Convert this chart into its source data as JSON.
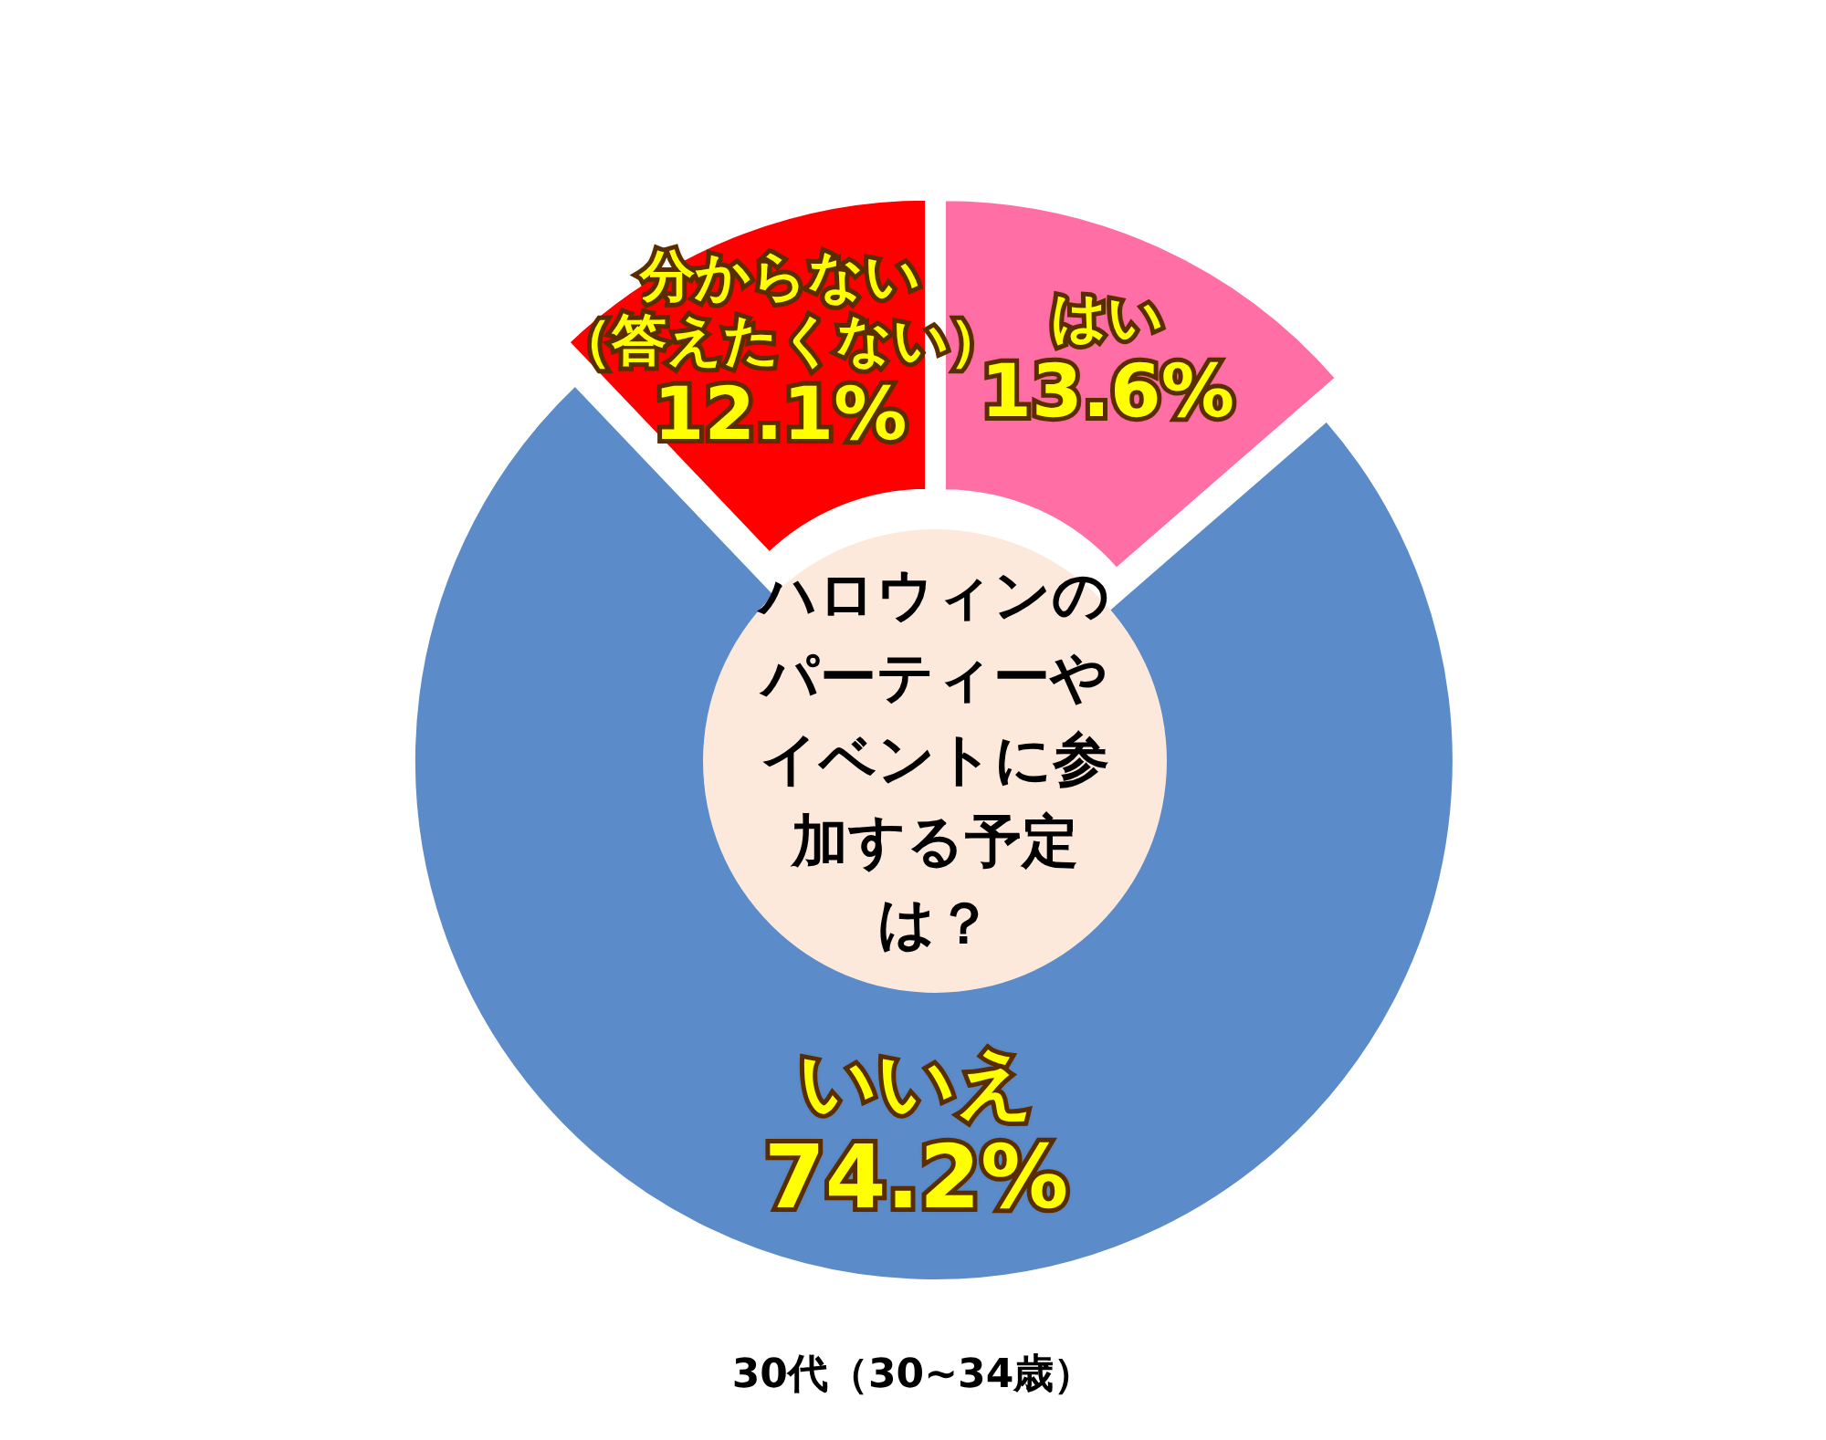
{
  "chart_data": {
    "type": "donut",
    "title": "ハロウィンのパーティーやイベントに参加する予定は？",
    "annotations": [
      "30代（30~34歳）"
    ],
    "categories": [
      "はい",
      "いいえ",
      "分からない（答えたくない）"
    ],
    "values": [
      13.6,
      74.2,
      12.1
    ],
    "colors": [
      "#ff6fa5",
      "#5b8bc9",
      "#ff0000"
    ],
    "value_labels": [
      "13.6%",
      "74.2%",
      "12.1%"
    ]
  }
}
